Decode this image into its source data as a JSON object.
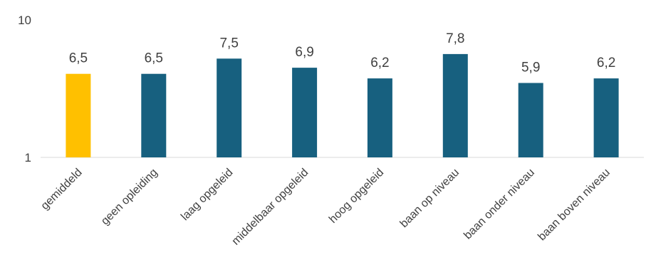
{
  "chart_data": {
    "type": "bar",
    "categories": [
      "gemiddeld",
      "geen opleiding",
      "laag opgeleid",
      "middelbaar opgeleid",
      "hoog opgeleid",
      "baan op niveau",
      "baan onder niveau",
      "baan boven niveau"
    ],
    "values": [
      6.5,
      6.5,
      7.5,
      6.9,
      6.2,
      7.8,
      5.9,
      6.2
    ],
    "data_labels": [
      "6,5",
      "6,5",
      "7,5",
      "6,9",
      "6,2",
      "7,8",
      "5,9",
      "6,2"
    ],
    "ylim": [
      1,
      10
    ],
    "yticks": [
      "1",
      "10"
    ],
    "title": "",
    "xlabel": "",
    "ylabel": "",
    "grid": false,
    "legend": "none",
    "colors": {
      "highlight": "#FFC000",
      "bar": "#17607F",
      "baseline": "#D9D9D9",
      "text": "#404040"
    }
  }
}
